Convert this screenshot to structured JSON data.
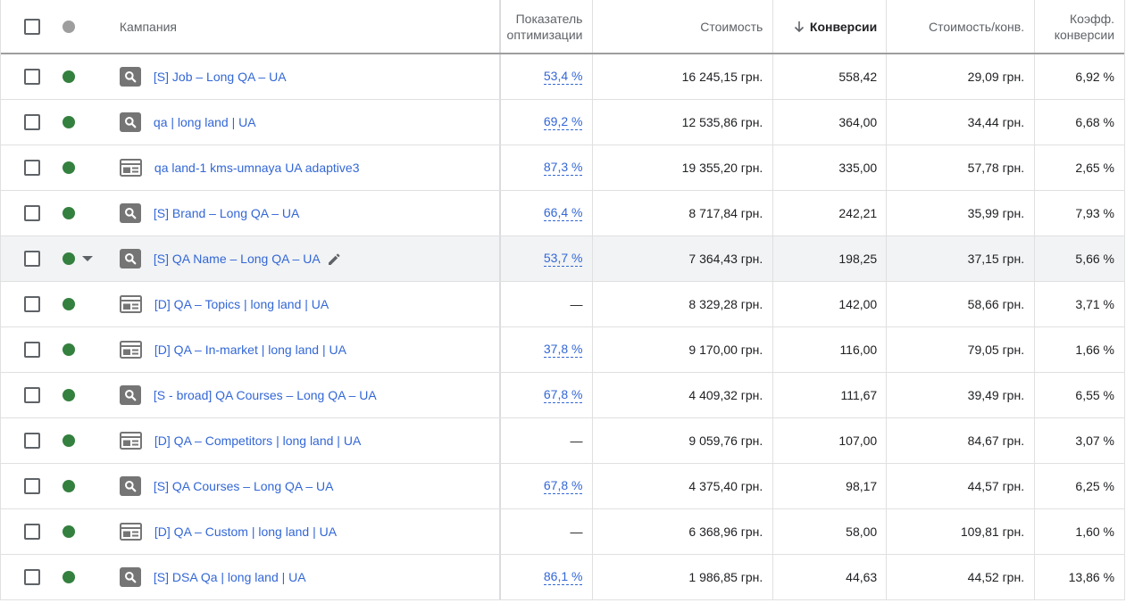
{
  "header": {
    "campaign": "Кампания",
    "opt_line1": "Показатель",
    "opt_line2": "оптимизации",
    "cost": "Стоимость",
    "conversions": "Конверсии",
    "cost_per_conv": "Стоимость/конв.",
    "rate_line1": "Коэфф.",
    "rate_line2": "конверсии",
    "sort_icon": "arrow-down-icon"
  },
  "rows": [
    {
      "type": "search",
      "name": "[S] Job – Long QA – UA",
      "opt": "53,4 %",
      "cost": "16 245,15 грн.",
      "conv": "558,42",
      "cpc": "29,09 грн.",
      "rate": "6,92 %"
    },
    {
      "type": "search",
      "name": "qa | long land | UA",
      "opt": "69,2 %",
      "cost": "12 535,86 грн.",
      "conv": "364,00",
      "cpc": "34,44 грн.",
      "rate": "6,68 %"
    },
    {
      "type": "display",
      "name": "qa land-1 kms-umnaya UA adaptive3",
      "opt": "87,3 %",
      "cost": "19 355,20 грн.",
      "conv": "335,00",
      "cpc": "57,78 грн.",
      "rate": "2,65 %"
    },
    {
      "type": "search",
      "name": "[S] Brand – Long QA – UA",
      "opt": "66,4 %",
      "cost": "8 717,84 грн.",
      "conv": "242,21",
      "cpc": "35,99 грн.",
      "rate": "7,93 %"
    },
    {
      "type": "search",
      "name": "[S] QA Name – Long QA – UA",
      "opt": "53,7 %",
      "cost": "7 364,43 грн.",
      "conv": "198,25",
      "cpc": "37,15 грн.",
      "rate": "5,66 %"
    },
    {
      "type": "display",
      "name": "[D] QA – Topics | long land | UA",
      "opt": "—",
      "cost": "8 329,28 грн.",
      "conv": "142,00",
      "cpc": "58,66 грн.",
      "rate": "3,71 %"
    },
    {
      "type": "display",
      "name": "[D] QA – In-market | long land | UA",
      "opt": "37,8 %",
      "cost": "9 170,00 грн.",
      "conv": "116,00",
      "cpc": "79,05 грн.",
      "rate": "1,66 %"
    },
    {
      "type": "search",
      "name": "[S - broad] QA Courses – Long QA – UA",
      "opt": "67,8 %",
      "cost": "4 409,32 грн.",
      "conv": "111,67",
      "cpc": "39,49 грн.",
      "rate": "6,55 %"
    },
    {
      "type": "display",
      "name": "[D] QA – Competitors | long land | UA",
      "opt": "—",
      "cost": "9 059,76 грн.",
      "conv": "107,00",
      "cpc": "84,67 грн.",
      "rate": "3,07 %"
    },
    {
      "type": "search",
      "name": "[S] QA Courses – Long QA – UA",
      "opt": "67,8 %",
      "cost": "4 375,40 грн.",
      "conv": "98,17",
      "cpc": "44,57 грн.",
      "rate": "6,25 %"
    },
    {
      "type": "display",
      "name": "[D] QA – Custom | long land | UA",
      "opt": "—",
      "cost": "6 368,96 грн.",
      "conv": "58,00",
      "cpc": "109,81 грн.",
      "rate": "1,60 %"
    },
    {
      "type": "search",
      "name": "[S] DSA Qa | long land | UA",
      "opt": "86,1 %",
      "cost": "1 986,85 грн.",
      "conv": "44,63",
      "cpc": "44,52 грн.",
      "rate": "13,86 %"
    }
  ],
  "colors": {
    "link": "#3367d6",
    "status_enabled": "#34803f",
    "status_header": "#9e9e9e",
    "row_highlight": "#f1f3f4"
  }
}
